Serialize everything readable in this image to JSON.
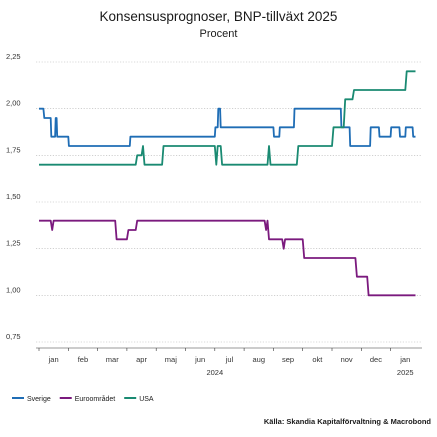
{
  "chart_data": {
    "type": "line",
    "title": "Konsensusprognoser, BNP-tillväxt 2025",
    "subtitle": "Procent",
    "source": "Källa: Skandia Kapitalförvaltning & Macrobond",
    "x_axis": {
      "months": [
        "jan",
        "feb",
        "mar",
        "apr",
        "maj",
        "jun",
        "jul",
        "aug",
        "sep",
        "okt",
        "nov",
        "dec",
        "jan"
      ],
      "years": [
        "2024",
        "2025"
      ]
    },
    "y_axis": {
      "ticks": [
        "2,25",
        "2,00",
        "1,75",
        "1,50",
        "1,25",
        "1,00",
        "0,75"
      ],
      "tick_values": [
        2.25,
        2.0,
        1.75,
        1.5,
        1.25,
        1.0,
        0.75
      ],
      "ylim": [
        0.75,
        2.25
      ]
    },
    "series": [
      {
        "name": "Sverige",
        "color": "#1f6db5",
        "points": [
          [
            0.0,
            2.0
          ],
          [
            0.15,
            2.0
          ],
          [
            0.18,
            1.95
          ],
          [
            0.4,
            1.95
          ],
          [
            0.42,
            1.85
          ],
          [
            0.55,
            1.85
          ],
          [
            0.57,
            1.95
          ],
          [
            0.6,
            1.95
          ],
          [
            0.62,
            1.85
          ],
          [
            1.0,
            1.85
          ],
          [
            1.02,
            1.8
          ],
          [
            3.1,
            1.8
          ],
          [
            3.12,
            1.85
          ],
          [
            6.0,
            1.85
          ],
          [
            6.02,
            1.9
          ],
          [
            6.1,
            1.9
          ],
          [
            6.12,
            2.0
          ],
          [
            6.18,
            2.0
          ],
          [
            6.2,
            1.9
          ],
          [
            8.0,
            1.9
          ],
          [
            8.02,
            1.85
          ],
          [
            8.2,
            1.85
          ],
          [
            8.22,
            1.9
          ],
          [
            8.7,
            1.9
          ],
          [
            8.72,
            2.0
          ],
          [
            10.3,
            2.0
          ],
          [
            10.32,
            1.9
          ],
          [
            10.6,
            1.9
          ],
          [
            10.62,
            1.8
          ],
          [
            11.3,
            1.8
          ],
          [
            11.32,
            1.9
          ],
          [
            11.6,
            1.9
          ],
          [
            11.62,
            1.85
          ],
          [
            12.0,
            1.85
          ],
          [
            12.02,
            1.9
          ],
          [
            12.3,
            1.9
          ],
          [
            12.32,
            1.85
          ],
          [
            12.5,
            1.85
          ],
          [
            12.52,
            1.9
          ],
          [
            12.75,
            1.9
          ],
          [
            12.77,
            1.85
          ],
          [
            12.85,
            1.85
          ]
        ]
      },
      {
        "name": "Euroområdet",
        "color": "#7b1a7e",
        "points": [
          [
            0.0,
            1.4
          ],
          [
            0.4,
            1.4
          ],
          [
            0.45,
            1.35
          ],
          [
            0.5,
            1.4
          ],
          [
            2.6,
            1.4
          ],
          [
            2.65,
            1.3
          ],
          [
            3.0,
            1.3
          ],
          [
            3.05,
            1.35
          ],
          [
            3.3,
            1.35
          ],
          [
            3.35,
            1.4
          ],
          [
            7.7,
            1.4
          ],
          [
            7.75,
            1.35
          ],
          [
            7.8,
            1.4
          ],
          [
            7.85,
            1.3
          ],
          [
            8.3,
            1.3
          ],
          [
            8.35,
            1.25
          ],
          [
            8.4,
            1.3
          ],
          [
            9.0,
            1.3
          ],
          [
            9.05,
            1.2
          ],
          [
            10.8,
            1.2
          ],
          [
            10.85,
            1.1
          ],
          [
            11.2,
            1.1
          ],
          [
            11.25,
            1.0
          ],
          [
            12.85,
            1.0
          ]
        ]
      },
      {
        "name": "USA",
        "color": "#1a8a72",
        "points": [
          [
            0.0,
            1.7
          ],
          [
            3.3,
            1.7
          ],
          [
            3.35,
            1.75
          ],
          [
            3.5,
            1.75
          ],
          [
            3.55,
            1.8
          ],
          [
            3.6,
            1.7
          ],
          [
            4.2,
            1.7
          ],
          [
            4.25,
            1.8
          ],
          [
            6.0,
            1.8
          ],
          [
            6.05,
            1.7
          ],
          [
            6.1,
            1.8
          ],
          [
            6.2,
            1.8
          ],
          [
            6.25,
            1.7
          ],
          [
            7.8,
            1.7
          ],
          [
            7.85,
            1.8
          ],
          [
            7.9,
            1.7
          ],
          [
            8.8,
            1.7
          ],
          [
            8.85,
            1.8
          ],
          [
            10.0,
            1.8
          ],
          [
            10.05,
            1.9
          ],
          [
            10.4,
            1.9
          ],
          [
            10.45,
            2.05
          ],
          [
            10.7,
            2.05
          ],
          [
            10.75,
            2.1
          ],
          [
            12.5,
            2.1
          ],
          [
            12.55,
            2.2
          ],
          [
            12.85,
            2.2
          ]
        ]
      }
    ],
    "legend": {
      "placement": "bottom-left"
    },
    "grid": {
      "horizontal": true,
      "vertical": false
    }
  }
}
